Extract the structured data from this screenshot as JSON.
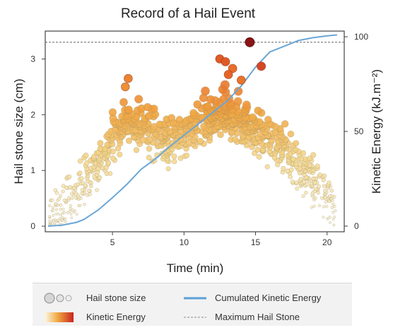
{
  "chart_data": {
    "type": "scatter",
    "title": "Record of a Hail Event",
    "xlabel": "Time (min)",
    "ylabel": "Hail stone size (cm)",
    "y2label": "Kinetic Energy (kJ.m⁻²)",
    "xlim": [
      0.3,
      21.2
    ],
    "ylim": [
      -0.1,
      3.5
    ],
    "y2lim": [
      -3.0,
      103.0
    ],
    "xticks": [
      "5",
      "10",
      "15",
      "20"
    ],
    "yticks": [
      "0",
      "1",
      "2",
      "3"
    ],
    "y2ticks": [
      "0",
      "50",
      "100"
    ],
    "xtick_values": [
      5,
      10,
      15,
      20
    ],
    "ytick_values": [
      0,
      1,
      2,
      3
    ],
    "y2tick_values": [
      0,
      50,
      100
    ],
    "max_hail_stone_cm": 3.3,
    "cumulated_kinetic_energy": {
      "name": "Cumulated Kinetic Energy",
      "color": "#6aa6d6",
      "x": [
        0.5,
        1.5,
        2.5,
        3.0,
        4.0,
        5.0,
        6.0,
        7.0,
        8.0,
        9.0,
        10.0,
        11.0,
        12.0,
        12.5,
        13.0,
        13.5,
        14.0,
        14.5,
        15.0,
        15.5,
        16.0,
        17.0,
        18.0,
        19.0,
        20.0,
        20.7
      ],
      "y": [
        0,
        0.5,
        2,
        3.5,
        8.5,
        15,
        22,
        30,
        35.5,
        42,
        48,
        54,
        60,
        63,
        66,
        70,
        74,
        79,
        84,
        88,
        92,
        95,
        98,
        99.5,
        100.5,
        101
      ]
    },
    "highlighted_points": [
      {
        "x": 14.6,
        "y": 3.3,
        "energy": 1.0
      },
      {
        "x": 15.4,
        "y": 2.87,
        "energy": 0.9
      },
      {
        "x": 12.5,
        "y": 3.0,
        "energy": 0.85
      },
      {
        "x": 12.9,
        "y": 2.95,
        "energy": 0.85
      },
      {
        "x": 13.4,
        "y": 2.83,
        "energy": 0.8
      },
      {
        "x": 13.1,
        "y": 2.72,
        "energy": 0.82
      },
      {
        "x": 6.1,
        "y": 2.65,
        "energy": 0.72
      },
      {
        "x": 5.9,
        "y": 2.5,
        "energy": 0.68
      },
      {
        "x": 14.0,
        "y": 2.62,
        "energy": 0.78
      }
    ],
    "scatter_note_colors": {
      "low": "#f4ecc8",
      "mid": "#f0a640",
      "high": "#c8241e"
    }
  },
  "legend": {
    "size_label": "Hail stone size",
    "energy_label": "Kinetic Energy",
    "line_label": "Cumulated Kinetic Energy",
    "max_label": "Maximum Hail Stone"
  }
}
